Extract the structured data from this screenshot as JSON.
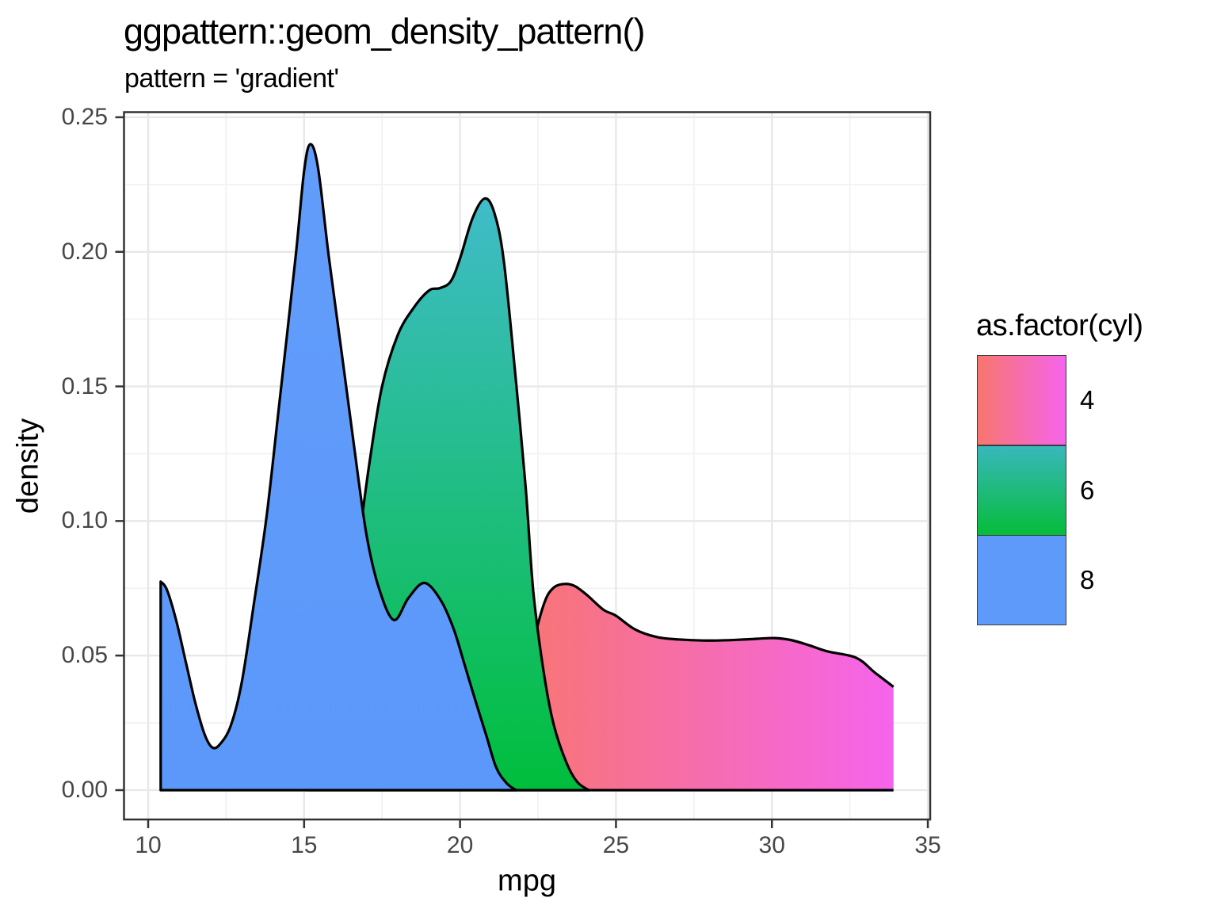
{
  "title": "ggpattern::geom_density_pattern()",
  "subtitle": "pattern = 'gradient'",
  "x_axis": {
    "title": "mpg",
    "tick_values": [
      10,
      15,
      20,
      25,
      30,
      35
    ],
    "tick_labels": [
      "10",
      "15",
      "20",
      "25",
      "30",
      "35"
    ],
    "range": [
      9.225,
      35.075
    ]
  },
  "y_axis": {
    "title": "density",
    "tick_values": [
      0.0,
      0.05,
      0.1,
      0.15,
      0.2,
      0.25
    ],
    "tick_labels": [
      "0.00",
      "0.05",
      "0.10",
      "0.15",
      "0.20",
      "0.25"
    ],
    "range": [
      -0.0109,
      0.2519
    ]
  },
  "legend": {
    "title": "as.factor(cyl)",
    "entries": [
      {
        "label": "4",
        "fill_from": "#F8766D",
        "fill_to": "#F564EC",
        "direction": "horizontal"
      },
      {
        "label": "6",
        "fill_from": "#38B8BC",
        "fill_to": "#06BC3A",
        "direction": "vertical"
      },
      {
        "label": "8",
        "fill_from": "#5E9AFA",
        "fill_to": "#5E9AFA",
        "direction": "vertical"
      }
    ]
  },
  "panel": {
    "background": "#FFFFFF",
    "border_color": "#333333",
    "grid_major_color": "#E8E8E8",
    "grid_minor_color": "#F2F2F2",
    "tick_color": "#333333",
    "curve_outline": "#000000"
  },
  "chart_data": {
    "type": "area",
    "title": "ggpattern::geom_density_pattern()",
    "subtitle": "pattern = 'gradient'",
    "xlabel": "mpg",
    "ylabel": "density",
    "xlim": [
      9.225,
      35.075
    ],
    "ylim": [
      -0.0109,
      0.2519
    ],
    "grid": true,
    "legend_position": "right",
    "series": [
      {
        "name": "4",
        "gradient": {
          "from": "#F8766D",
          "to": "#F564EC",
          "direction": "horizontal"
        },
        "edge": "right",
        "points": [
          [
            21.3,
            0
          ],
          [
            21.7,
            0.012
          ],
          [
            22.0,
            0.03
          ],
          [
            22.35,
            0.054
          ],
          [
            22.7,
            0.0695
          ],
          [
            23.0,
            0.0752
          ],
          [
            23.37,
            0.0766
          ],
          [
            23.7,
            0.0757
          ],
          [
            24.1,
            0.0722
          ],
          [
            24.6,
            0.067
          ],
          [
            25.0,
            0.0648
          ],
          [
            25.6,
            0.0598
          ],
          [
            26.3,
            0.0569
          ],
          [
            27.0,
            0.056
          ],
          [
            27.8,
            0.0556
          ],
          [
            28.6,
            0.0557
          ],
          [
            29.3,
            0.0561
          ],
          [
            30.1,
            0.0565
          ],
          [
            30.6,
            0.0558
          ],
          [
            31.2,
            0.0538
          ],
          [
            31.8,
            0.0515
          ],
          [
            32.7,
            0.0492
          ],
          [
            33.3,
            0.0437
          ],
          [
            33.9,
            0.0384
          ]
        ]
      },
      {
        "name": "6",
        "gradient": {
          "from": "#40BCC9",
          "to": "#00BE3C",
          "direction": "vertical"
        },
        "edge": "none",
        "points": [
          [
            15.1,
            0
          ],
          [
            15.5,
            0.008
          ],
          [
            16.0,
            0.028
          ],
          [
            16.4,
            0.058
          ],
          [
            16.8,
            0.096
          ],
          [
            17.1,
            0.122
          ],
          [
            17.5,
            0.15
          ],
          [
            18.0,
            0.169
          ],
          [
            18.5,
            0.179
          ],
          [
            19.0,
            0.1856
          ],
          [
            19.35,
            0.1865
          ],
          [
            19.7,
            0.189
          ],
          [
            20.0,
            0.1975
          ],
          [
            20.4,
            0.2125
          ],
          [
            20.79,
            0.2198
          ],
          [
            21.1,
            0.2145
          ],
          [
            21.4,
            0.197
          ],
          [
            21.76,
            0.156
          ],
          [
            22.1,
            0.113
          ],
          [
            22.35,
            0.0737
          ],
          [
            22.69,
            0.0433
          ],
          [
            23.0,
            0.0245
          ],
          [
            23.4,
            0.0105
          ],
          [
            23.76,
            0.003
          ],
          [
            24.13,
            0
          ]
        ]
      },
      {
        "name": "8",
        "gradient": {
          "from": "#639DFB",
          "to": "#5B98FA",
          "direction": "vertical"
        },
        "edge": "left",
        "points": [
          [
            10.4,
            0.0775
          ],
          [
            10.6,
            0.0745
          ],
          [
            10.9,
            0.063
          ],
          [
            11.2,
            0.048
          ],
          [
            11.5,
            0.033
          ],
          [
            11.8,
            0.021
          ],
          [
            12.05,
            0.0159
          ],
          [
            12.3,
            0.017
          ],
          [
            12.65,
            0.024
          ],
          [
            13.0,
            0.04
          ],
          [
            13.4,
            0.07
          ],
          [
            13.8,
            0.102
          ],
          [
            14.2,
            0.143
          ],
          [
            14.73,
            0.1984
          ],
          [
            15.0,
            0.23
          ],
          [
            15.2,
            0.24
          ],
          [
            15.45,
            0.231
          ],
          [
            15.79,
            0.1984
          ],
          [
            16.2,
            0.163
          ],
          [
            16.6,
            0.128
          ],
          [
            17.0,
            0.095
          ],
          [
            17.4,
            0.075
          ],
          [
            17.88,
            0.0632
          ],
          [
            18.35,
            0.0715
          ],
          [
            18.86,
            0.077
          ],
          [
            19.38,
            0.0706
          ],
          [
            19.8,
            0.0597
          ],
          [
            20.14,
            0.0469
          ],
          [
            20.5,
            0.033
          ],
          [
            20.85,
            0.02
          ],
          [
            21.16,
            0.0084
          ],
          [
            21.5,
            0.0025
          ],
          [
            21.8,
            0
          ]
        ]
      }
    ]
  }
}
